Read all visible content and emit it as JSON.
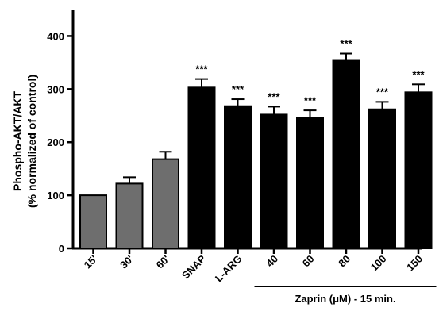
{
  "chart_data": {
    "type": "bar",
    "ylabel_line1": "Phospho-AKT/AKT",
    "ylabel_line2": "(% normalized of  control)",
    "xlabel": "",
    "ylim": [
      0,
      450
    ],
    "yticks": [
      0,
      100,
      200,
      300,
      400
    ],
    "categories": [
      "15'",
      "30'",
      "60'",
      "SNAP",
      "L-ARG",
      "40",
      "60",
      "80",
      "100",
      "150"
    ],
    "values": [
      100,
      122,
      168,
      303,
      268,
      252,
      246,
      355,
      262,
      294
    ],
    "errors": [
      0,
      12,
      14,
      16,
      13,
      15,
      14,
      12,
      14,
      15
    ],
    "significance": [
      "",
      "",
      "",
      "***",
      "***",
      "***",
      "***",
      "***",
      "***",
      "***"
    ],
    "bar_colors": [
      "#6e6e6e",
      "#6e6e6e",
      "#6e6e6e",
      "#000000",
      "#000000",
      "#000000",
      "#000000",
      "#000000",
      "#000000",
      "#000000"
    ],
    "group_label": "Zaprin (μM) - 15 min.",
    "group_range": [
      5,
      9
    ]
  }
}
